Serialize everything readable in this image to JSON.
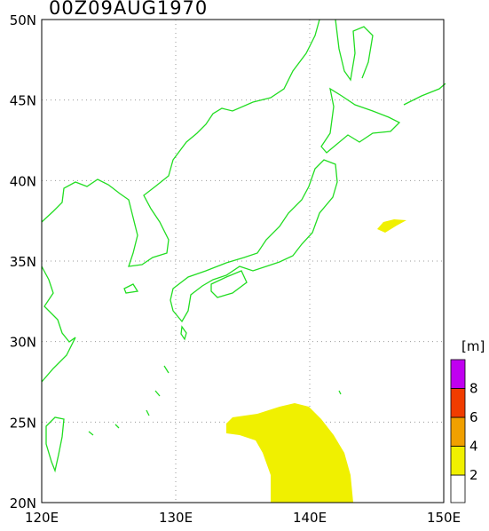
{
  "map": {
    "title": "00Z09AUG1970",
    "lon_labels": [
      "120E",
      "130E",
      "140E",
      "150E"
    ],
    "lat_labels": [
      "20N",
      "25N",
      "30N",
      "35N",
      "40N",
      "45N",
      "50N"
    ],
    "colorbar": {
      "unit": "[m]",
      "levels": [
        2,
        4,
        6,
        8
      ],
      "colors": [
        "#ffffff",
        "#f0f000",
        "#f0a000",
        "#f03c00",
        "#c000f0"
      ]
    }
  }
}
